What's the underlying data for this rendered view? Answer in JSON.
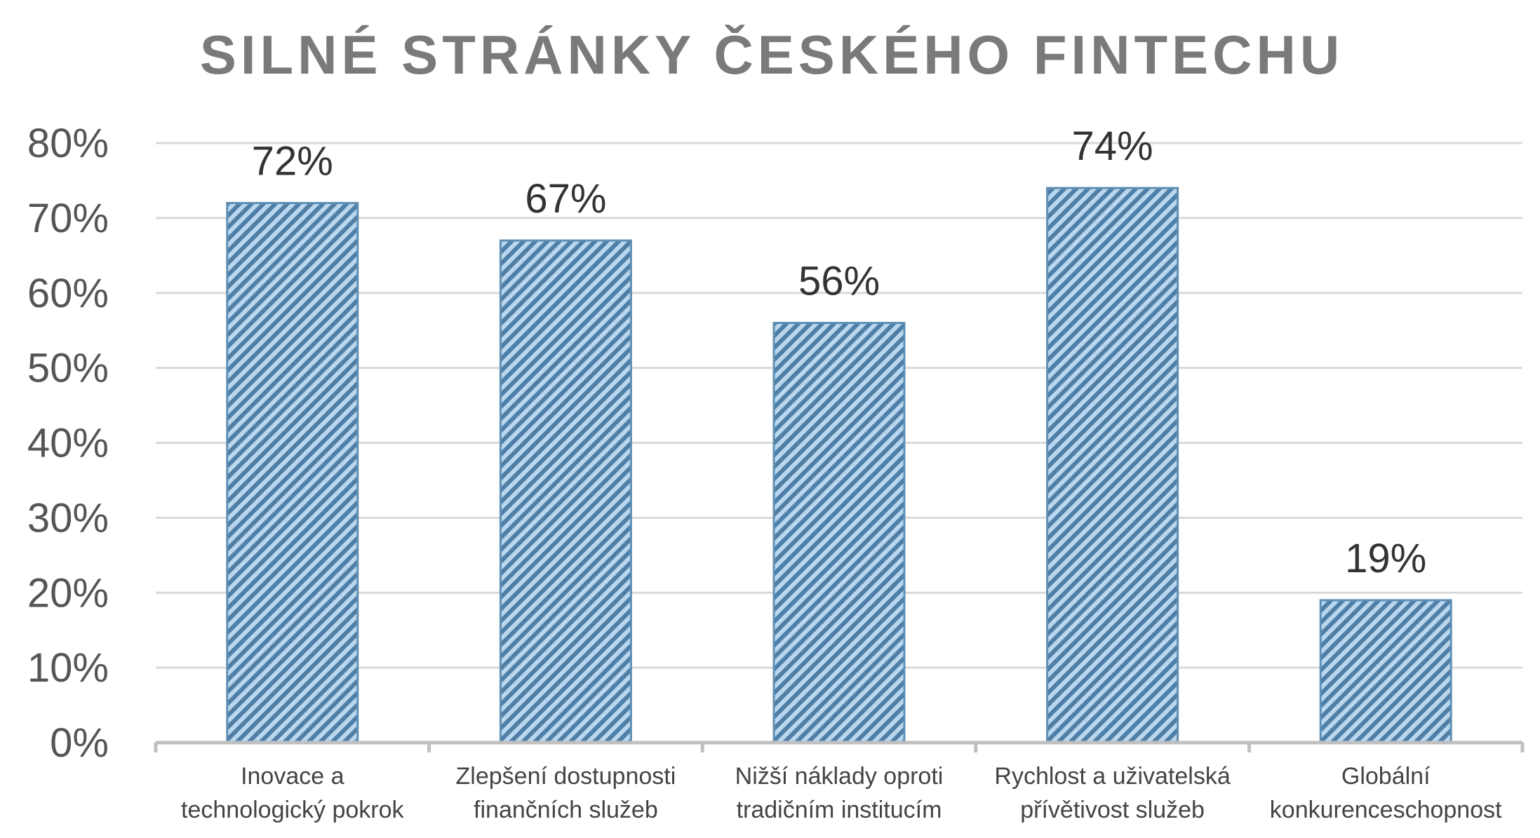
{
  "chart_data": {
    "type": "bar",
    "title": "SILNÉ STRÁNKY ČESKÉHO FINTECHU",
    "categories": [
      [
        "Inovace a",
        "technologický pokrok"
      ],
      [
        "Zlepšení dostupnosti",
        "finančních služeb"
      ],
      [
        "Nižší náklady oproti",
        "tradičním institucím"
      ],
      [
        "Rychlost a uživatelská",
        "přívětivost služeb"
      ],
      [
        "Globální",
        "konkurenceschopnost"
      ]
    ],
    "values": [
      72,
      67,
      56,
      74,
      19
    ],
    "data_labels": [
      "72%",
      "67%",
      "56%",
      "74%",
      "19%"
    ],
    "ylim": [
      0,
      80
    ],
    "yticks": [
      0,
      10,
      20,
      30,
      40,
      50,
      60,
      70,
      80
    ],
    "ytick_labels": [
      "0%",
      "10%",
      "20%",
      "30%",
      "40%",
      "50%",
      "60%",
      "70%",
      "80%"
    ],
    "xlabel": "",
    "ylabel": "",
    "grid": true,
    "legend": "none",
    "colors": {
      "bar_fill": "#b9d7ee",
      "bar_stripe": "#4f7fa6",
      "bar_edge": "#5f8fb4",
      "title": "#7a7a7a",
      "gridline": "#d9d9d9"
    }
  }
}
